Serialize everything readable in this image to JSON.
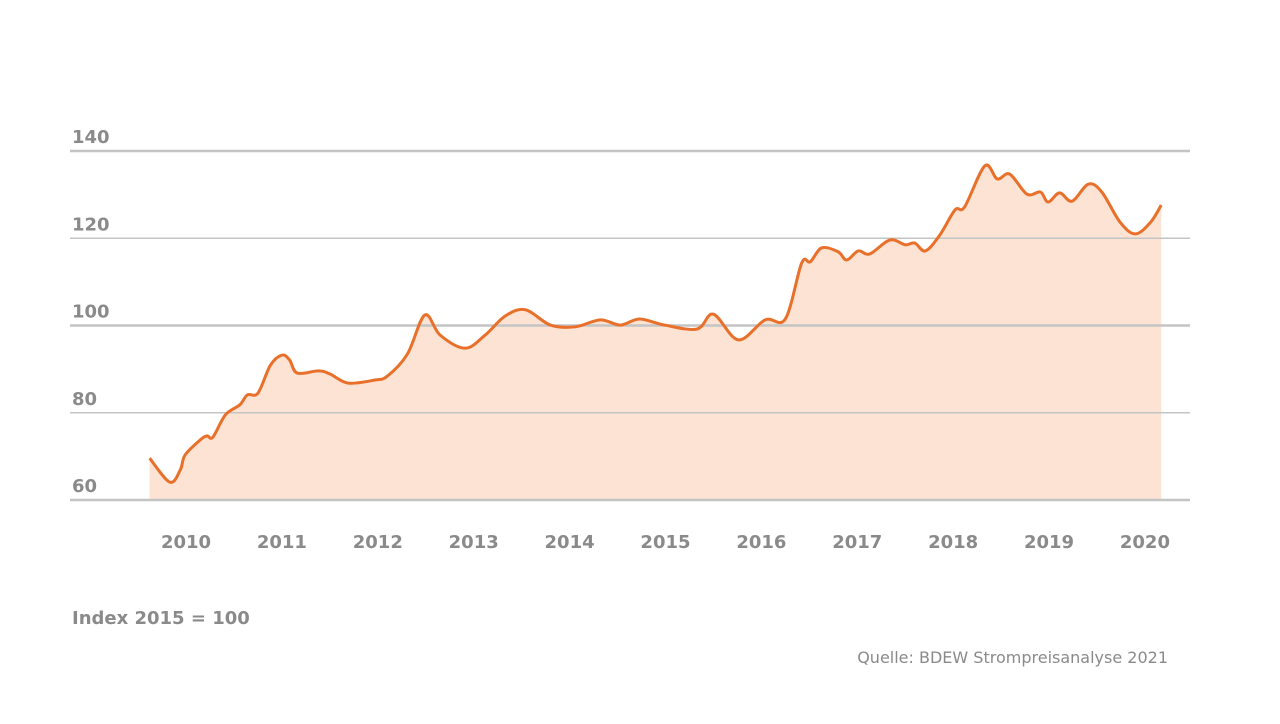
{
  "chart_data": {
    "type": "area",
    "x": [
      2009.62,
      2009.83,
      2009.94,
      2009.99,
      2010.15,
      2010.22,
      2010.28,
      2010.41,
      2010.56,
      2010.64,
      2010.75,
      2010.88,
      2011.0,
      2011.08,
      2011.16,
      2011.38,
      2011.5,
      2011.69,
      2011.97,
      2012.1,
      2012.31,
      2012.49,
      2012.65,
      2012.91,
      2013.12,
      2013.33,
      2013.54,
      2013.8,
      2014.06,
      2014.32,
      2014.53,
      2014.73,
      2014.99,
      2015.33,
      2015.5,
      2015.76,
      2016.04,
      2016.25,
      2016.42,
      2016.51,
      2016.63,
      2016.8,
      2016.89,
      2017.01,
      2017.13,
      2017.34,
      2017.5,
      2017.6,
      2017.71,
      2017.86,
      2018.02,
      2018.12,
      2018.33,
      2018.46,
      2018.59,
      2018.77,
      2018.91,
      2018.99,
      2019.11,
      2019.24,
      2019.41,
      2019.55,
      2019.74,
      2019.9,
      2020.06,
      2020.17
    ],
    "series": [
      {
        "color": "#e8702a",
        "fill": "#fde3d3",
        "values": [
          69.6,
          64.1,
          66.9,
          70.3,
          73.8,
          74.7,
          74.4,
          79.5,
          81.8,
          84.1,
          84.5,
          90.9,
          93.2,
          92.1,
          89.1,
          89.6,
          88.9,
          86.8,
          87.5,
          88.4,
          93.5,
          102.4,
          97.8,
          94.8,
          97.8,
          102.2,
          103.6,
          100.1,
          99.7,
          101.3,
          100.1,
          101.5,
          100.1,
          99.2,
          102.6,
          96.7,
          101.3,
          101.5,
          114.3,
          114.6,
          117.8,
          116.9,
          115.0,
          117.1,
          116.4,
          119.6,
          118.5,
          118.9,
          117.1,
          120.7,
          126.5,
          127.2,
          136.6,
          133.6,
          134.7,
          130.1,
          130.6,
          128.3,
          130.4,
          128.5,
          132.4,
          130.6,
          123.7,
          121.0,
          123.7,
          127.6
        ]
      }
    ],
    "xlim": [
      2008.79,
      2020.47
    ],
    "xticks": [
      2010,
      2011,
      2012,
      2013,
      2014,
      2015,
      2016,
      2017,
      2018,
      2019,
      2020
    ],
    "ylim": [
      60,
      140
    ],
    "yticks": [
      60,
      80,
      100,
      120,
      140
    ],
    "grid": true,
    "note": "Index 2015 = 100",
    "source": "Quelle: BDEW Strompreisanalyse 2021"
  }
}
